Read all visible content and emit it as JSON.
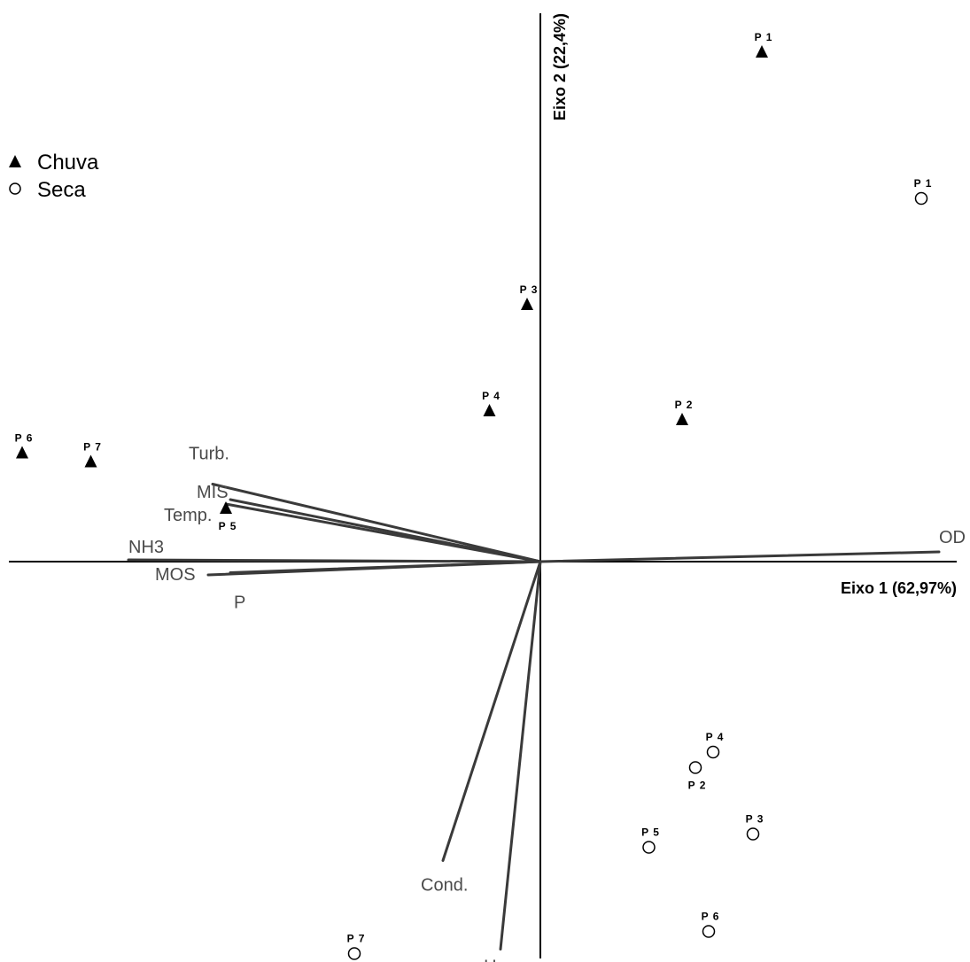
{
  "chart_data": {
    "type": "scatter",
    "subtype": "biplot",
    "xlabel": "Eixo 1 (62,97%)",
    "ylabel": "Eixo 2 (22,4%)",
    "xlim": [
      -1.2,
      0.95
    ],
    "ylim": [
      -0.92,
      1.24
    ],
    "grid": false,
    "legend_position": "top-left",
    "legend": [
      {
        "name": "Chuva",
        "marker": "filled-triangle"
      },
      {
        "name": "Seca",
        "marker": "open-circle"
      }
    ],
    "series": [
      {
        "name": "Chuva",
        "marker": "filled-triangle",
        "points": [
          {
            "label": "P 1",
            "x": 0.5,
            "y": 1.15
          },
          {
            "label": "P 3",
            "x": -0.03,
            "y": 0.58
          },
          {
            "label": "P 4",
            "x": -0.115,
            "y": 0.34
          },
          {
            "label": "P 2",
            "x": 0.32,
            "y": 0.32
          },
          {
            "label": "P 6",
            "x": -1.17,
            "y": 0.245
          },
          {
            "label": "P 7",
            "x": -1.015,
            "y": 0.225
          },
          {
            "label": "P 5",
            "x": -0.71,
            "y": 0.12
          }
        ]
      },
      {
        "name": "Seca",
        "marker": "open-circle",
        "points": [
          {
            "label": "P 1",
            "x": 0.86,
            "y": 0.82
          },
          {
            "label": "P 4",
            "x": 0.39,
            "y": -0.43
          },
          {
            "label": "P 2",
            "x": 0.35,
            "y": -0.465
          },
          {
            "label": "P 3",
            "x": 0.48,
            "y": -0.615
          },
          {
            "label": "P 5",
            "x": 0.245,
            "y": -0.645
          },
          {
            "label": "P 6",
            "x": 0.38,
            "y": -0.835
          },
          {
            "label": "P 7",
            "x": -0.42,
            "y": -0.885
          }
        ]
      }
    ],
    "vectors": [
      {
        "label": "OD",
        "x": 0.9,
        "y": 0.022
      },
      {
        "label": "Turb.",
        "x": -0.74,
        "y": 0.175
      },
      {
        "label": "MIS",
        "x": -0.7,
        "y": 0.14
      },
      {
        "label": "Temp.",
        "x": -0.71,
        "y": 0.13
      },
      {
        "label": "NH3",
        "x": -0.93,
        "y": 0.004
      },
      {
        "label": "MOS",
        "x": -0.75,
        "y": -0.03
      },
      {
        "label": "P",
        "x": -0.7,
        "y": -0.025
      },
      {
        "label": "Cond.",
        "x": -0.22,
        "y": -0.675
      },
      {
        "label": "pH",
        "x": -0.09,
        "y": -0.875
      }
    ]
  }
}
